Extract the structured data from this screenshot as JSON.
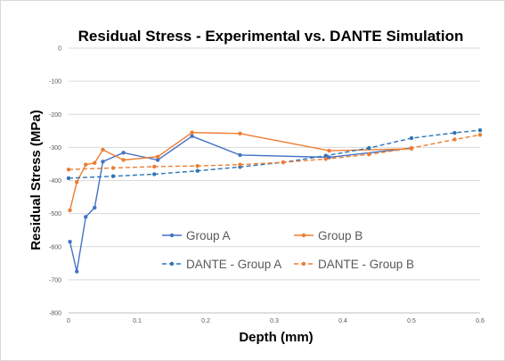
{
  "chart_data": {
    "type": "line",
    "title": "Residual Stress - Experimental vs. DANTE Simulation",
    "xlabel": "Depth (mm)",
    "ylabel": "Residual Stress (MPa)",
    "xlim": [
      0,
      0.6
    ],
    "ylim": [
      -800,
      0
    ],
    "x_ticks": [
      "0",
      "0.1",
      "0.2",
      "0.3",
      "0.4",
      "0.5",
      "0.6"
    ],
    "y_ticks": [
      "0",
      "-100",
      "-200",
      "-300",
      "-400",
      "-500",
      "-600",
      "-700",
      "-800"
    ],
    "grid": "horizontal",
    "legend_position": "bottom-inside",
    "series": [
      {
        "name": "Group A",
        "style": "solid",
        "color": "#4472C4",
        "points": [
          [
            0.002,
            -585
          ],
          [
            0.012,
            -675
          ],
          [
            0.025,
            -510
          ],
          [
            0.038,
            -482
          ],
          [
            0.05,
            -343
          ],
          [
            0.08,
            -316
          ],
          [
            0.13,
            -338
          ],
          [
            0.18,
            -266
          ],
          [
            0.25,
            -323
          ],
          [
            0.38,
            -330
          ],
          [
            0.5,
            -302
          ]
        ]
      },
      {
        "name": "Group B",
        "style": "solid",
        "color": "#ED7D31",
        "points": [
          [
            0.002,
            -490
          ],
          [
            0.012,
            -405
          ],
          [
            0.025,
            -352
          ],
          [
            0.038,
            -347
          ],
          [
            0.05,
            -307
          ],
          [
            0.08,
            -338
          ],
          [
            0.13,
            -328
          ],
          [
            0.18,
            -255
          ],
          [
            0.25,
            -258
          ],
          [
            0.38,
            -310
          ],
          [
            0.5,
            -304
          ]
        ]
      },
      {
        "name": "DANTE - Group A",
        "style": "dashed",
        "color": "#2E75B6",
        "points": [
          [
            0,
            -393
          ],
          [
            0.065,
            -387
          ],
          [
            0.125,
            -381
          ],
          [
            0.188,
            -371
          ],
          [
            0.25,
            -359
          ],
          [
            0.313,
            -345
          ],
          [
            0.375,
            -325
          ],
          [
            0.438,
            -302
          ],
          [
            0.5,
            -272
          ],
          [
            0.563,
            -256
          ],
          [
            0.6,
            -248
          ]
        ]
      },
      {
        "name": "DANTE - Group B",
        "style": "dashed",
        "color": "#ED7D31",
        "points": [
          [
            0,
            -367
          ],
          [
            0.065,
            -362
          ],
          [
            0.125,
            -358
          ],
          [
            0.188,
            -356
          ],
          [
            0.25,
            -352
          ],
          [
            0.313,
            -345
          ],
          [
            0.375,
            -335
          ],
          [
            0.438,
            -321
          ],
          [
            0.5,
            -302
          ],
          [
            0.563,
            -276
          ],
          [
            0.6,
            -262
          ]
        ]
      }
    ]
  }
}
